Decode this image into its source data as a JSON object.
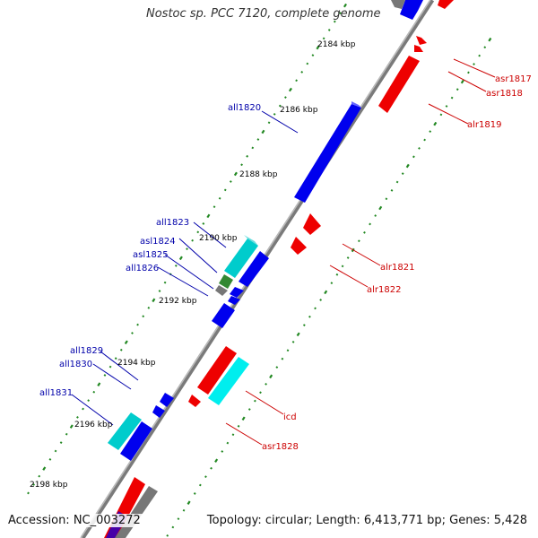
{
  "title": "Nostoc sp. PCC 7120, complete genome",
  "accession": "Accession: NC_003272",
  "topology": "Topology: circular; Length: 6,413,771 bp; Genes: 5,428",
  "colors": {
    "backbone": "#777777",
    "forward_label": "#cc0000",
    "reverse_label": "#0000aa",
    "tick": "#228822",
    "gene_blue": "#0000ee",
    "gene_red": "#ee0000",
    "gene_cyan": "#00cccc",
    "gene_gray": "#777777",
    "gene_green": "#338833"
  },
  "kbp_marks": [
    "2184 kbp",
    "2186 kbp",
    "2188 kbp",
    "2190 kbp",
    "2192 kbp",
    "2194 kbp",
    "2196 kbp",
    "2198 kbp"
  ],
  "forward_genes": [
    "asr1817",
    "asr1818",
    "alr1819",
    "alr1821",
    "alr1822",
    "icd",
    "asr1828"
  ],
  "reverse_genes": [
    "all1820",
    "all1823",
    "asl1824",
    "asl1825",
    "all1826",
    "all1829",
    "all1830",
    "all1831"
  ]
}
